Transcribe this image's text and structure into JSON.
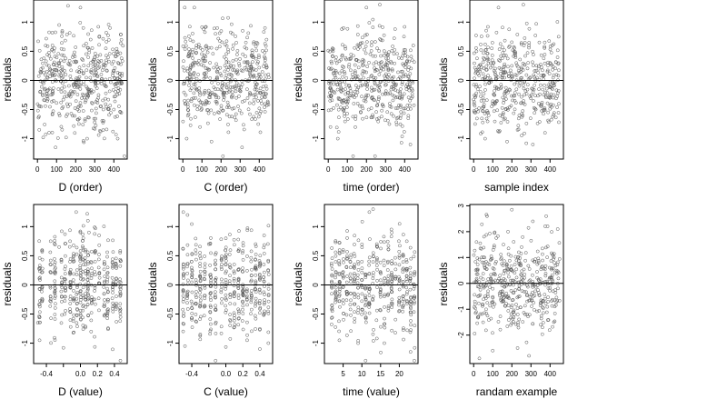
{
  "chart_data": [
    {
      "type": "scatter",
      "xlabel": "D (order)",
      "ylabel": "residuals",
      "xlim": [
        -20,
        470
      ],
      "ylim": [
        -1.35,
        1.38
      ],
      "xticks": [
        0,
        100,
        200,
        300,
        400
      ],
      "yticks": [
        -1.0,
        -0.5,
        0.0,
        0.5,
        1.0
      ],
      "hline": 0,
      "x_distribution": "index",
      "n": 450,
      "y_range": [
        -1.3,
        1.3
      ],
      "points": [
        [
          8,
          -0.62
        ],
        [
          15,
          0.15
        ],
        [
          30,
          -0.98
        ],
        [
          45,
          0.33
        ],
        [
          60,
          0.25
        ],
        [
          75,
          0.52
        ],
        [
          95,
          -1.15
        ],
        [
          110,
          0.3
        ],
        [
          130,
          0.85
        ],
        [
          150,
          -0.98
        ],
        [
          160,
          1.28
        ],
        [
          185,
          -0.2
        ],
        [
          210,
          -0.5
        ],
        [
          225,
          1.25
        ],
        [
          240,
          0.9
        ],
        [
          260,
          -1.0
        ],
        [
          300,
          0.4
        ],
        [
          320,
          -0.25
        ],
        [
          345,
          -0.5
        ],
        [
          360,
          0.82
        ],
        [
          380,
          0.9
        ],
        [
          400,
          -0.5
        ],
        [
          420,
          -1.0
        ],
        [
          440,
          0.38
        ],
        [
          455,
          -1.3
        ]
      ]
    },
    {
      "type": "scatter",
      "xlabel": "C (order)",
      "ylabel": "residuals",
      "xlim": [
        -20,
        470
      ],
      "ylim": [
        -1.35,
        1.38
      ],
      "xticks": [
        0,
        100,
        200,
        300,
        400
      ],
      "yticks": [
        -1.0,
        -0.5,
        0.0,
        0.5,
        1.0
      ],
      "hline": 0,
      "x_distribution": "index",
      "n": 450,
      "y_range": [
        -1.3,
        1.3
      ],
      "points": [
        [
          10,
          1.25
        ],
        [
          20,
          -1.0
        ],
        [
          60,
          1.25
        ],
        [
          80,
          0.1
        ],
        [
          90,
          -0.8
        ],
        [
          120,
          0.58
        ],
        [
          150,
          -1.05
        ],
        [
          180,
          0.9
        ],
        [
          210,
          -1.3
        ],
        [
          230,
          0.22
        ],
        [
          260,
          0.8
        ],
        [
          280,
          -0.3
        ],
        [
          310,
          -1.15
        ],
        [
          330,
          0.65
        ],
        [
          350,
          -0.25
        ],
        [
          370,
          0.4
        ],
        [
          395,
          -0.75
        ],
        [
          430,
          0.9
        ],
        [
          450,
          0.05
        ]
      ]
    },
    {
      "type": "scatter",
      "xlabel": "time (order)",
      "ylabel": "residuals",
      "xlim": [
        -20,
        470
      ],
      "ylim": [
        -1.35,
        1.38
      ],
      "xticks": [
        0,
        100,
        200,
        300,
        400
      ],
      "yticks": [
        -1.0,
        -0.5,
        0.0,
        0.5,
        1.0
      ],
      "hline": 0,
      "x_distribution": "index",
      "n": 450,
      "y_range": [
        -1.3,
        1.3
      ],
      "points": [
        [
          10,
          -0.35
        ],
        [
          25,
          0.5
        ],
        [
          50,
          -1.0
        ],
        [
          80,
          0.9
        ],
        [
          110,
          -0.1
        ],
        [
          130,
          -1.3
        ],
        [
          150,
          0.35
        ],
        [
          170,
          -0.55
        ],
        [
          200,
          1.25
        ],
        [
          220,
          0.45
        ],
        [
          245,
          -1.3
        ],
        [
          270,
          1.3
        ],
        [
          300,
          0.25
        ],
        [
          320,
          -0.75
        ],
        [
          350,
          0.88
        ],
        [
          390,
          0.42
        ],
        [
          410,
          -0.15
        ],
        [
          430,
          -1.1
        ],
        [
          445,
          0.6
        ]
      ]
    },
    {
      "type": "scatter",
      "xlabel": "sample index",
      "ylabel": "residuals",
      "xlim": [
        -20,
        470
      ],
      "ylim": [
        -1.35,
        1.38
      ],
      "xticks": [
        0,
        100,
        200,
        300,
        400
      ],
      "yticks": [
        -1.0,
        -0.5,
        0.0,
        0.5,
        1.0
      ],
      "hline": 0,
      "x_distribution": "index",
      "n": 450,
      "y_range": [
        -1.3,
        1.3
      ],
      "points": [
        [
          15,
          0.5
        ],
        [
          40,
          -0.35
        ],
        [
          60,
          -1.0
        ],
        [
          95,
          0.55
        ],
        [
          130,
          1.25
        ],
        [
          150,
          -0.62
        ],
        [
          175,
          -1.05
        ],
        [
          200,
          0.25
        ],
        [
          230,
          -0.85
        ],
        [
          260,
          1.3
        ],
        [
          290,
          0.6
        ],
        [
          310,
          -1.1
        ],
        [
          340,
          0.2
        ],
        [
          370,
          -0.5
        ],
        [
          400,
          0.3
        ],
        [
          420,
          -0.25
        ],
        [
          445,
          0.75
        ]
      ]
    },
    {
      "type": "scatter",
      "xlabel": "D (value)",
      "ylabel": "residuals",
      "xlim": [
        -0.55,
        0.55
      ],
      "ylim": [
        -1.35,
        1.38
      ],
      "xticks": [
        -0.4,
        -0.2,
        0.0,
        0.2,
        0.4
      ],
      "xtick_labels": [
        "-0.4",
        "",
        "0.0",
        "0.2",
        "0.4"
      ],
      "yticks": [
        -1.0,
        -0.5,
        0.0,
        0.5,
        1.0
      ],
      "hline": 0,
      "x_distribution": "columns",
      "x_columns": [
        -0.48,
        -0.45,
        -0.35,
        -0.3,
        -0.22,
        -0.18,
        -0.12,
        -0.08,
        -0.04,
        0.0,
        0.03,
        0.06,
        0.09,
        0.13,
        0.17,
        0.22,
        0.28,
        0.32,
        0.38,
        0.42,
        0.47
      ],
      "n": 420,
      "y_range": [
        -1.3,
        1.3
      ],
      "points": [
        [
          -0.5,
          -0.65
        ],
        [
          -0.48,
          -0.95
        ],
        [
          -0.35,
          0.75
        ],
        [
          -0.25,
          0.65
        ],
        [
          -0.2,
          -1.08
        ],
        [
          -0.05,
          1.25
        ],
        [
          0.0,
          -0.3
        ],
        [
          0.08,
          1.22
        ],
        [
          0.1,
          0.9
        ],
        [
          0.15,
          -0.25
        ],
        [
          0.22,
          0.85
        ],
        [
          0.3,
          -0.5
        ],
        [
          0.4,
          -0.35
        ],
        [
          0.42,
          0.35
        ],
        [
          0.47,
          -1.3
        ],
        [
          0.46,
          0.05
        ]
      ]
    },
    {
      "type": "scatter",
      "xlabel": "C (value)",
      "ylabel": "residuals",
      "xlim": [
        -0.55,
        0.55
      ],
      "ylim": [
        -1.35,
        1.38
      ],
      "xticks": [
        -0.4,
        -0.2,
        0.0,
        0.2,
        0.4
      ],
      "xtick_labels": [
        "-0.4",
        "",
        "0.0",
        "0.2",
        "0.4"
      ],
      "yticks": [
        -1.0,
        -0.5,
        0.0,
        0.5,
        1.0
      ],
      "hline": 0,
      "x_distribution": "columns",
      "x_columns": [
        -0.5,
        -0.45,
        -0.4,
        -0.35,
        -0.3,
        -0.25,
        -0.18,
        -0.12,
        -0.05,
        0.0,
        0.05,
        0.1,
        0.15,
        0.2,
        0.25,
        0.3,
        0.35,
        0.4,
        0.45,
        0.5
      ],
      "n": 420,
      "y_range": [
        -1.3,
        1.3
      ],
      "points": [
        [
          -0.5,
          1.25
        ],
        [
          -0.45,
          1.2
        ],
        [
          -0.48,
          -1.05
        ],
        [
          -0.3,
          -0.85
        ],
        [
          -0.2,
          0.7
        ],
        [
          -0.12,
          -1.3
        ],
        [
          0.0,
          0.8
        ],
        [
          0.05,
          -0.6
        ],
        [
          0.15,
          0.58
        ],
        [
          0.25,
          -0.95
        ],
        [
          0.35,
          0.7
        ],
        [
          0.4,
          -1.1
        ],
        [
          0.45,
          0.85
        ],
        [
          0.5,
          -1.0
        ],
        [
          0.5,
          0.4
        ]
      ]
    },
    {
      "type": "scatter",
      "xlabel": "time (value)",
      "ylabel": "residuals",
      "xlim": [
        0,
        25
      ],
      "ylim": [
        -1.35,
        1.38
      ],
      "xticks": [
        5,
        10,
        15,
        20
      ],
      "yticks": [
        -1.0,
        -0.5,
        0.0,
        0.5,
        1.0
      ],
      "hline": 0,
      "x_distribution": "columns",
      "x_columns": [
        2,
        3,
        4,
        5,
        6,
        7,
        8,
        9,
        10,
        11,
        12,
        13,
        14,
        15,
        16,
        17,
        18,
        19,
        20,
        21,
        22,
        23,
        24
      ],
      "n": 420,
      "y_range": [
        -1.3,
        1.3
      ],
      "points": [
        [
          2,
          -0.35
        ],
        [
          4,
          -0.95
        ],
        [
          5,
          0.6
        ],
        [
          7,
          0.3
        ],
        [
          9,
          -1.0
        ],
        [
          11,
          -1.3
        ],
        [
          12,
          1.25
        ],
        [
          13,
          1.3
        ],
        [
          14,
          0.7
        ],
        [
          16,
          -1.0
        ],
        [
          18,
          0.9
        ],
        [
          20,
          -0.3
        ],
        [
          22,
          0.75
        ],
        [
          23,
          -1.15
        ],
        [
          24,
          -1.3
        ]
      ]
    },
    {
      "type": "scatter",
      "xlabel": "randam example",
      "ylabel": "residuals",
      "xlim": [
        -20,
        470
      ],
      "ylim": [
        -3.1,
        3.05
      ],
      "xticks": [
        0,
        100,
        200,
        300,
        400
      ],
      "yticks": [
        -2,
        -1,
        0,
        1,
        2,
        3
      ],
      "hline": 0,
      "x_distribution": "index",
      "n": 450,
      "y_range": [
        -2.9,
        2.9
      ],
      "points": [
        [
          15,
          1.6
        ],
        [
          30,
          -2.9
        ],
        [
          70,
          2.6
        ],
        [
          100,
          -2.6
        ],
        [
          150,
          -0.3
        ],
        [
          180,
          2.0
        ],
        [
          200,
          2.85
        ],
        [
          230,
          -2.5
        ],
        [
          270,
          -1.2
        ],
        [
          290,
          -2.8
        ],
        [
          310,
          2.4
        ],
        [
          340,
          0.8
        ],
        [
          360,
          -1.7
        ],
        [
          380,
          2.6
        ],
        [
          420,
          -1.5
        ],
        [
          440,
          2.1
        ]
      ]
    }
  ]
}
